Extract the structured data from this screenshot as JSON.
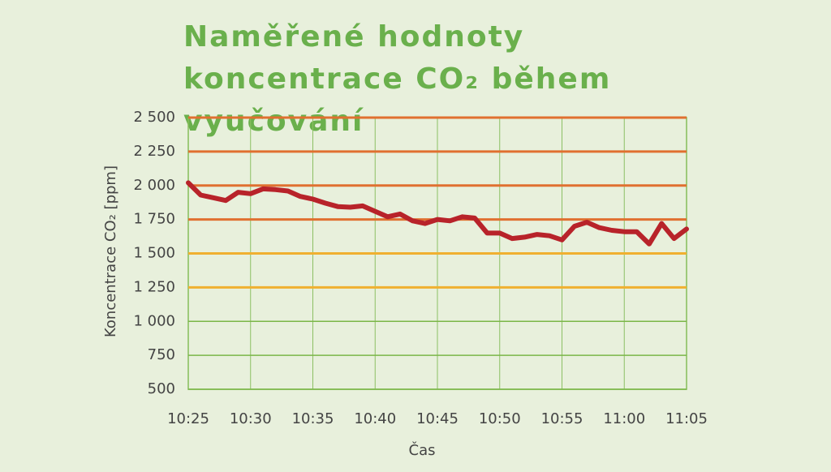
{
  "chart_data": {
    "type": "line",
    "title": "Naměřené hodnoty koncentrace CO₂ během vyučování",
    "xlabel": "Čas",
    "ylabel": "Koncentrace CO₂ [ppm]",
    "x": [
      "10:25",
      "10:26",
      "10:27",
      "10:28",
      "10:29",
      "10:30",
      "10:31",
      "10:32",
      "10:33",
      "10:34",
      "10:35",
      "10:36",
      "10:37",
      "10:38",
      "10:39",
      "10:40",
      "10:41",
      "10:42",
      "10:43",
      "10:44",
      "10:45",
      "10:46",
      "10:47",
      "10:48",
      "10:49",
      "10:50",
      "10:51",
      "10:52",
      "10:53",
      "10:54",
      "10:55",
      "10:56",
      "10:57",
      "10:58",
      "10:59",
      "11:00",
      "11:01",
      "11:02",
      "11:03",
      "11:04",
      "11:05"
    ],
    "series": [
      {
        "name": "CO₂",
        "color": "#b8232a",
        "values": [
          2020,
          1930,
          1910,
          1890,
          1950,
          1940,
          1975,
          1970,
          1960,
          1920,
          1900,
          1870,
          1845,
          1840,
          1850,
          1810,
          1770,
          1790,
          1740,
          1720,
          1750,
          1740,
          1770,
          1760,
          1650,
          1650,
          1610,
          1620,
          1640,
          1630,
          1600,
          1700,
          1730,
          1690,
          1670,
          1660,
          1660,
          1570,
          1720,
          1610,
          1680
        ]
      }
    ],
    "xlim": [
      "10:25",
      "11:05"
    ],
    "xticks": [
      "10:25",
      "10:30",
      "10:35",
      "10:40",
      "10:45",
      "10:50",
      "10:55",
      "11:00",
      "11:05"
    ],
    "ylim": [
      500,
      2500
    ],
    "yticks": [
      500,
      750,
      {
        "value": 1000,
        "label": "1 000"
      },
      {
        "value": 1250,
        "label": "1 250"
      },
      {
        "value": 1500,
        "label": "1 500"
      },
      {
        "value": 1750,
        "label": "1 750"
      },
      {
        "value": 2000,
        "label": "2 000"
      },
      {
        "value": 2250,
        "label": "2 250"
      },
      {
        "value": 2500,
        "label": "2 500"
      }
    ],
    "ytick_colors": [
      "#7ab648",
      "#7ab648",
      "#7ab648",
      "#f0b030",
      "#f0b030",
      "#e07030",
      "#e07030",
      "#e07030",
      "#e07030"
    ],
    "grid": true
  }
}
